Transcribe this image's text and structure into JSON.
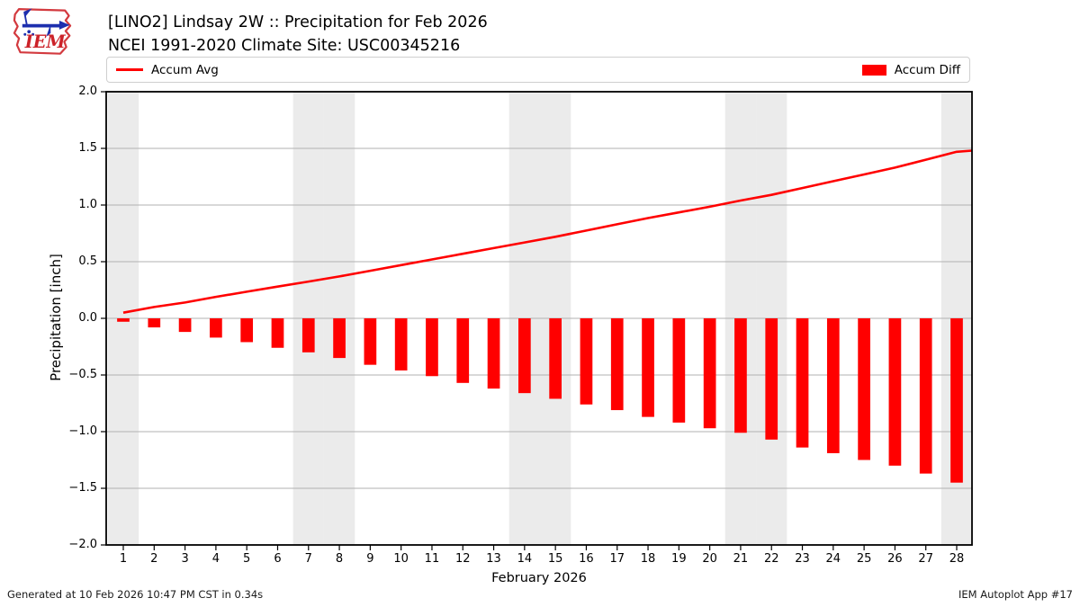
{
  "header": {
    "title_line1": "[LINO2] Lindsay 2W :: Precipitation for Feb 2026",
    "title_line2": "NCEI 1991-2020 Climate Site: USC00345216",
    "logo_text": "IEM"
  },
  "legend": {
    "avg_label": "Accum Avg",
    "diff_label": "Accum Diff"
  },
  "footer": {
    "left": "Generated at 10 Feb 2026 10:47 PM CST in 0.34s",
    "right": "IEM Autoplot App #17"
  },
  "chart_data": {
    "type": "bar",
    "title": "[LINO2] Lindsay 2W :: Precipitation for Feb 2026",
    "subtitle": "NCEI 1991-2020 Climate Site: USC00345216",
    "xlabel": "February 2026",
    "ylabel": "Precipitation [inch]",
    "ylim": [
      -2.0,
      2.0
    ],
    "ytick_values": [
      2.0,
      1.5,
      1.0,
      0.5,
      0.0,
      -0.5,
      -1.0,
      -1.5,
      -2.0
    ],
    "ytick_labels": [
      "2.0",
      "1.5",
      "1.0",
      "0.5",
      "0.0",
      "−0.5",
      "−1.0",
      "−1.5",
      "−2.0"
    ],
    "x": [
      1,
      2,
      3,
      4,
      5,
      6,
      7,
      8,
      9,
      10,
      11,
      12,
      13,
      14,
      15,
      16,
      17,
      18,
      19,
      20,
      21,
      22,
      23,
      24,
      25,
      26,
      27,
      28
    ],
    "series": [
      {
        "name": "Accum Avg",
        "type": "line",
        "color": "#ff0000",
        "values": [
          0.05,
          0.1,
          0.14,
          0.19,
          0.235,
          0.28,
          0.325,
          0.37,
          0.42,
          0.47,
          0.52,
          0.57,
          0.62,
          0.67,
          0.72,
          0.775,
          0.83,
          0.885,
          0.935,
          0.985,
          1.04,
          1.09,
          1.15,
          1.21,
          1.27,
          1.33,
          1.4,
          1.47
        ],
        "end_of_axis_value": 1.48
      },
      {
        "name": "Accum Diff",
        "type": "bar",
        "color": "#ff0000",
        "values": [
          -0.03,
          -0.08,
          -0.12,
          -0.17,
          -0.21,
          -0.26,
          -0.3,
          -0.35,
          -0.41,
          -0.46,
          -0.51,
          -0.57,
          -0.62,
          -0.66,
          -0.71,
          -0.76,
          -0.81,
          -0.87,
          -0.92,
          -0.97,
          -1.01,
          -1.07,
          -1.14,
          -1.19,
          -1.25,
          -1.3,
          -1.37,
          -1.45
        ]
      }
    ],
    "weekend_shaded_days": [
      1,
      7,
      8,
      14,
      15,
      21,
      22,
      28
    ],
    "grid": "horizontal-only",
    "legend_position": "top, avg left / diff right",
    "colors": {
      "accent": "#ff0000",
      "weekend_band": "#ebebeb",
      "gridline": "#b0b0b0",
      "frame": "#000000"
    }
  }
}
